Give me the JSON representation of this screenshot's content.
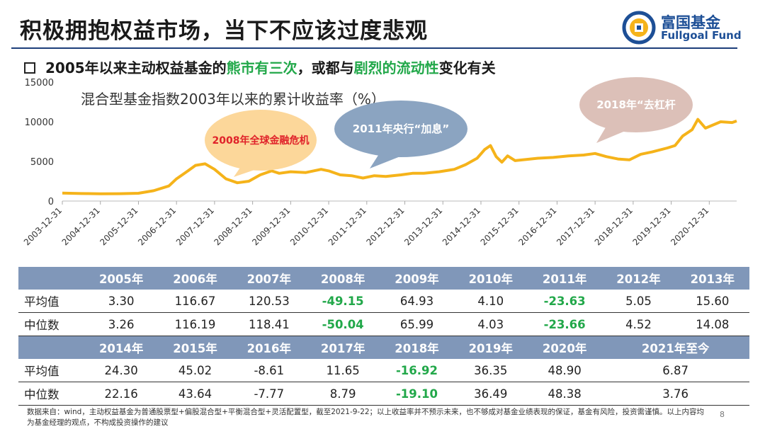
{
  "header": {
    "title": "积极拥抱权益市场，当下不应该过度悲观"
  },
  "logo": {
    "name_cn": "富国基金",
    "name_en": "Fullgoal Fund"
  },
  "subtitle": {
    "part1": "2005年以来主动权益基金的",
    "part2": "熊市有三次",
    "part3": "，或都与",
    "part4": "剧烈的流动性",
    "part5": "变化有关"
  },
  "chart_data": {
    "type": "line",
    "title": "混合型基金指数2003年以来的累计收益率（%）",
    "ylim": [
      0,
      15000
    ],
    "yticks": [
      0,
      5000,
      10000,
      15000
    ],
    "xticks": [
      "2003-12-31",
      "2004-12-31",
      "2005-12-31",
      "2006-12-31",
      "2007-12-31",
      "2008-12-31",
      "2009-12-31",
      "2010-12-31",
      "2011-12-31",
      "2012-12-31",
      "2013-12-31",
      "2014-12-31",
      "2015-12-31",
      "2016-12-31",
      "2017-12-31",
      "2018-12-31",
      "2019-12-31",
      "2020-12-31"
    ],
    "line_color": "#f5b31a",
    "series": [
      {
        "x": [
          2004.0,
          2004.5,
          2005.0,
          2005.5,
          2006.0,
          2006.4,
          2006.8,
          2007.0,
          2007.3,
          2007.5,
          2007.75,
          2008.0,
          2008.3,
          2008.6,
          2008.9,
          2009.2,
          2009.5,
          2009.7,
          2010.0,
          2010.4,
          2010.8,
          2011.0,
          2011.3,
          2011.6,
          2011.9,
          2012.2,
          2012.5,
          2012.9,
          2013.2,
          2013.5,
          2013.9,
          2014.3,
          2014.6,
          2014.9,
          2015.1,
          2015.25,
          2015.4,
          2015.55,
          2015.7,
          2015.9,
          2016.1,
          2016.5,
          2016.9,
          2017.3,
          2017.7,
          2018.0,
          2018.3,
          2018.6,
          2018.9,
          2019.2,
          2019.5,
          2019.9,
          2020.1,
          2020.3,
          2020.55,
          2020.7,
          2020.9,
          2021.1,
          2021.3,
          2021.6,
          2021.72
        ],
        "values": [
          1000,
          950,
          920,
          930,
          980,
          1300,
          1900,
          2800,
          3800,
          4500,
          4700,
          4000,
          2800,
          2300,
          2500,
          3300,
          3800,
          3500,
          3700,
          3600,
          4000,
          3800,
          3300,
          3200,
          2900,
          3200,
          3100,
          3300,
          3500,
          3500,
          3700,
          4000,
          4600,
          5400,
          6500,
          7000,
          5600,
          4900,
          5700,
          5100,
          5200,
          5400,
          5500,
          5700,
          5800,
          6000,
          5600,
          5300,
          5200,
          5900,
          6200,
          6700,
          7000,
          8200,
          9000,
          10300,
          9200,
          9600,
          10000,
          9900,
          10100
        ]
      }
    ],
    "annotations": [
      {
        "text": "2008年全球金融危机",
        "color": "#e0222a"
      },
      {
        "text": "2011年央行“加息”",
        "color": "#ffffff"
      },
      {
        "text": "2018年“去杠杆",
        "color": "#ffffff"
      }
    ]
  },
  "table": {
    "header1": [
      "2005年",
      "2006年",
      "2007年",
      "2008年",
      "2009年",
      "2010年",
      "2011年",
      "2012年",
      "2013年"
    ],
    "avg1": [
      "3.30",
      "116.67",
      "120.53",
      "-49.15",
      "64.93",
      "4.10",
      "-23.63",
      "5.05",
      "15.60"
    ],
    "med1": [
      "3.26",
      "116.19",
      "118.41",
      "-50.04",
      "65.99",
      "4.03",
      "-23.66",
      "4.52",
      "14.08"
    ],
    "header2": [
      "2014年",
      "2015年",
      "2016年",
      "2017年",
      "2018年",
      "2019年",
      "2020年",
      "2021年至今"
    ],
    "avg2": [
      "24.30",
      "45.02",
      "-8.61",
      "11.65",
      "-16.92",
      "36.35",
      "48.90",
      "6.87"
    ],
    "med2": [
      "22.16",
      "43.64",
      "-7.77",
      "8.79",
      "-19.10",
      "36.49",
      "48.38",
      "3.76"
    ],
    "label_avg": "平均值",
    "label_med": "中位数"
  },
  "footer": {
    "source": "数据来自：wind，主动权益基金为普通股票型+偏股混合型+平衡混合型+灵活配置型，截至2021-9-22；以上收益率并不预示未来，也不够成对基金业绩表现的保证，基金有风险，投资需谨慎。以上内容均为基金经理的观点，不构成投资操作的建议",
    "page": "8"
  }
}
